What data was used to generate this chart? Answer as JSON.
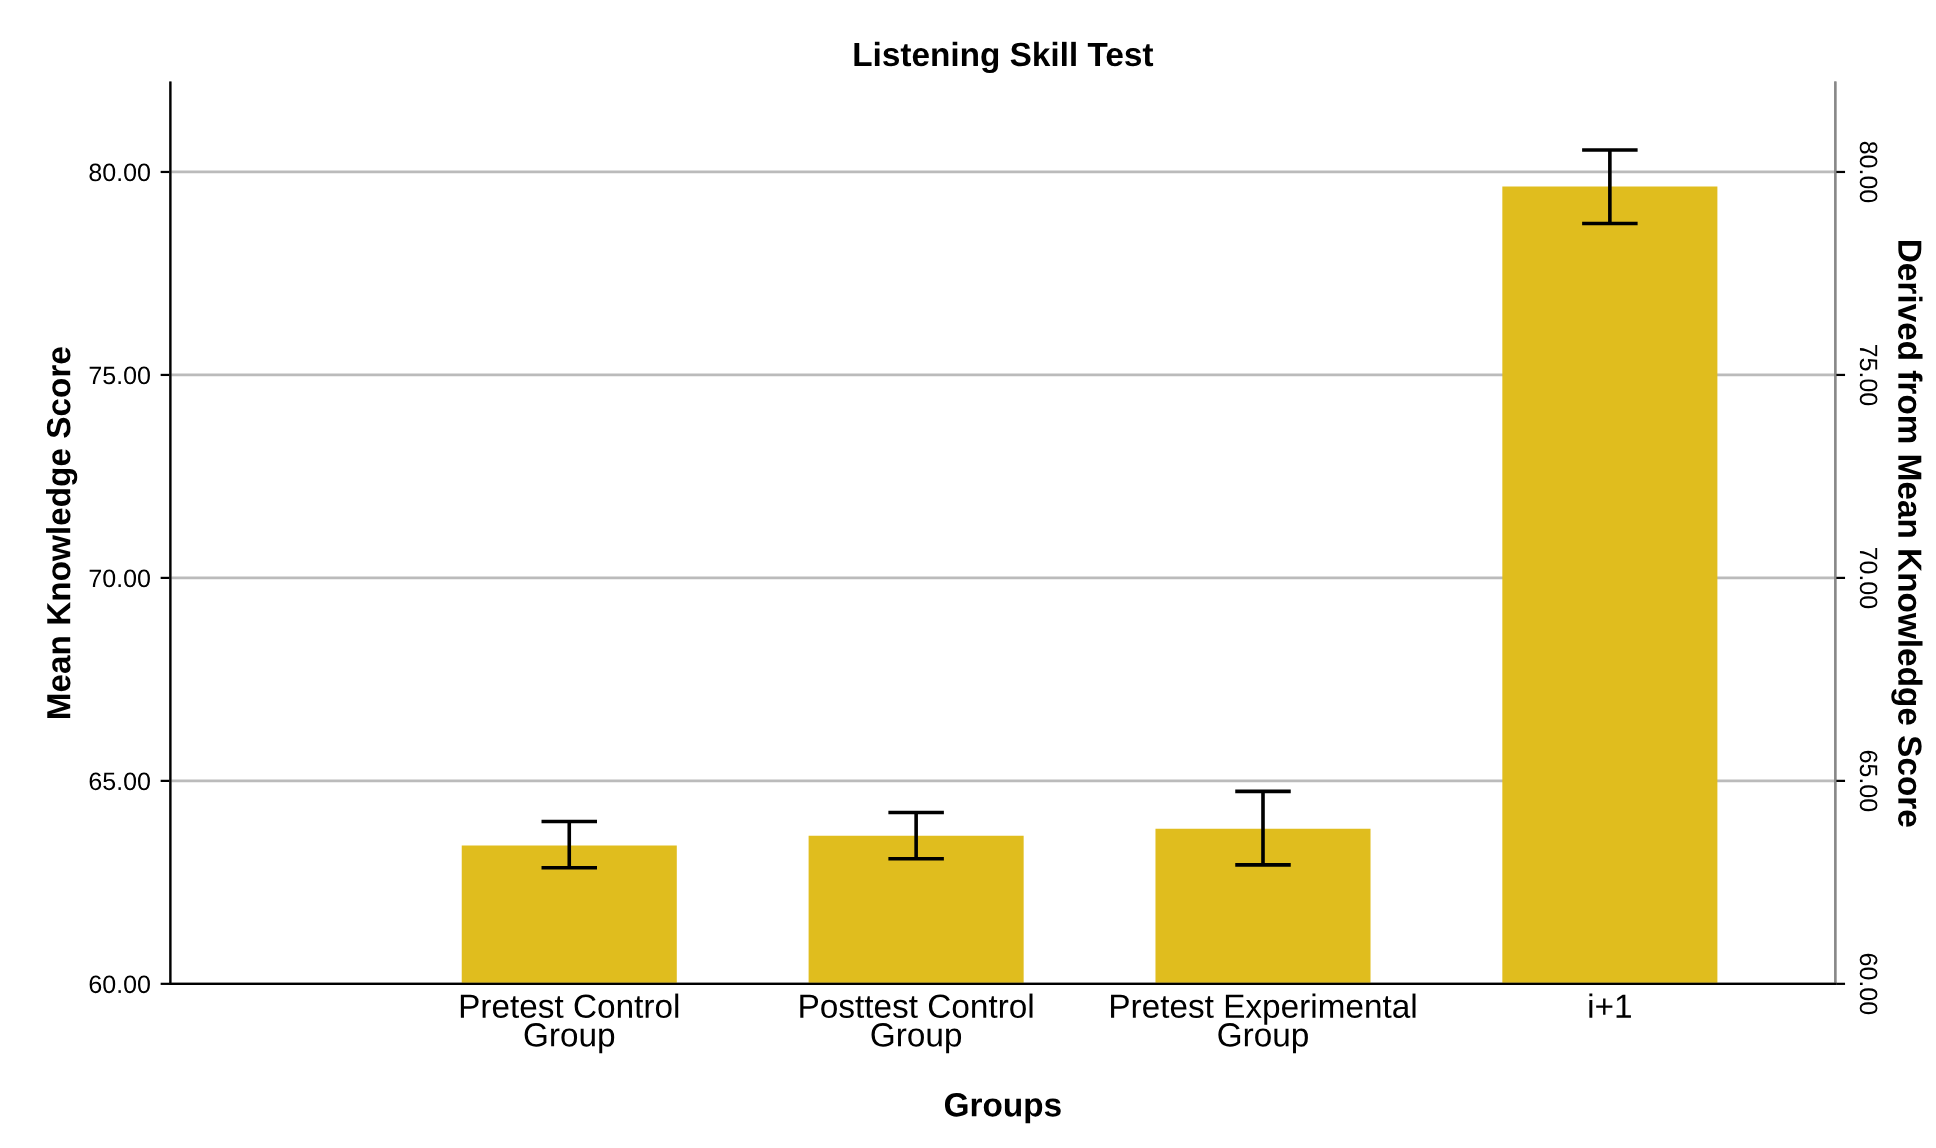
{
  "chart_data": {
    "type": "bar",
    "title": "Listening Skill Test",
    "xlabel": "Groups",
    "ylabel": "Mean Knowledge Score",
    "y2label": "Derived from Mean Knowledge Score",
    "categories": [
      "Pretest Control\nGroup",
      "Posttest Control\nGroup",
      "Pretest Experimental\nGroup",
      "i+1"
    ],
    "values": [
      63.41,
      63.65,
      63.82,
      79.64
    ],
    "errors": [
      [
        62.86,
        64.0
      ],
      [
        63.08,
        64.22
      ],
      [
        62.93,
        64.74
      ],
      [
        78.73,
        80.54
      ]
    ],
    "color": "#e0bd1e",
    "ylim": [
      60,
      82.2
    ],
    "yticks": [
      {
        "value": 60,
        "label": "60.00"
      },
      {
        "value": 65,
        "label": "65.00"
      },
      {
        "value": 70,
        "label": "70.00"
      },
      {
        "value": 75,
        "label": "75.00"
      },
      {
        "value": 80,
        "label": "80.00"
      }
    ],
    "y2lim": [
      60,
      82.2
    ],
    "y2ticks": [
      {
        "value": 60,
        "label": "60.00"
      },
      {
        "value": 65,
        "label": "65.00"
      },
      {
        "value": 70,
        "label": "70.00"
      },
      {
        "value": 75,
        "label": "75.00"
      },
      {
        "value": 80,
        "label": "80.00"
      }
    ],
    "grid": "y"
  }
}
